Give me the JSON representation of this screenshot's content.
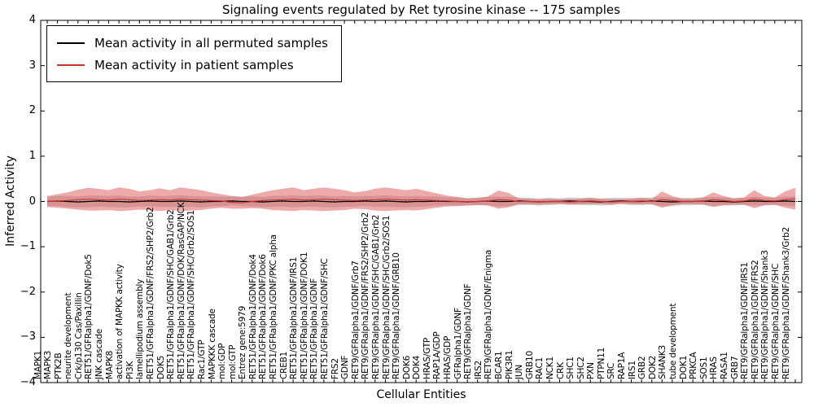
{
  "title": "Signaling events regulated by Ret tyrosine kinase -- 175 samples",
  "legend": {
    "items": [
      {
        "label": "Mean activity in all permuted samples",
        "color": "#000000"
      },
      {
        "label": "Mean activity in patient samples",
        "color": "#cc3333"
      }
    ]
  },
  "axes": {
    "ylabel": "Inferred Activity",
    "xlabel": "Cellular Entities",
    "yticks": [
      {
        "label": "4",
        "value": 4
      },
      {
        "label": "3",
        "value": 3
      },
      {
        "label": "2",
        "value": 2
      },
      {
        "label": "1",
        "value": 1
      },
      {
        "label": "0",
        "value": 0
      },
      {
        "label": "−1",
        "value": -1
      },
      {
        "label": "−2",
        "value": -2
      },
      {
        "label": "−3",
        "value": -3
      },
      {
        "label": "−4",
        "value": -4
      }
    ]
  },
  "chart_data": {
    "type": "line",
    "title": "Signaling events regulated by Ret tyrosine kinase -- 175 samples",
    "xlabel": "Cellular Entities",
    "ylabel": "Inferred Activity",
    "ylim": [
      -4,
      4
    ],
    "grid": false,
    "legend_position": "upper left",
    "zero_line_dotted": true,
    "categories": [
      "MAPK1",
      "MAPK3",
      "PTK2B",
      "neurite development",
      "Crk/p130 Cas/Paxillin",
      "RET51/GFRalpha1/GDNF/Dok5",
      "JNK cascade",
      "MAPK8",
      "activation of MAPKK activity",
      "PI3K",
      "lamellipodium assembly",
      "RET51/GFRalpha1/GDNF/FRS2/SHP2/Grb2",
      "DOK5",
      "RET51/GFRalpha1/GDNF/SHC/GAB1/Grb2",
      "RET51/GFRalpha1/GDNF/DOK/RasGAP/NCK",
      "RET51/GFRalpha1/GDNF/SHC/Grb2/SOS1",
      "Rac1/GTP",
      "MAPKKK cascade",
      "mol:GDP",
      "mol:GTP",
      "Entrez gene:5979",
      "RET51/GFRalpha1/GDNF/Dok4",
      "RET51/GFRalpha1/GDNF/Dok6",
      "RET51/GFRalpha1/GDNF/PKC alpha",
      "CREB1",
      "RET51/GFRalpha1/GDNF/IRS1",
      "RET51/GFRalpha1/GDNF/DOK1",
      "RET51/GFRalpha1/GDNF",
      "RET51/GFRalpha1/GDNF/SHC",
      "FRS2",
      "GDNF",
      "RET9/GFRalpha1/GDNF/Grb7",
      "RET9/GFRalpha1/GDNF/FRS2/SHP2/Grb2",
      "RET9/GFRalpha1/GDNF/SHC/GAB1/Grb2",
      "RET9/GFRalpha1/GDNF/SHC/Grb2/SOS1",
      "RET9/GFRalpha1/GDNF/GRB10",
      "DOK6",
      "DOK4",
      "HRAS/GTP",
      "RAP1A/GDP",
      "HRAS/GDP",
      "GFRalpha1/GDNF",
      "RET9/GFRalpha1/GDNF",
      "IRS2",
      "RET9/GFRalpha1/GDNF/Enigma",
      "BCAR1",
      "PIK3R1",
      "JUN",
      "GRB10",
      "RAC1",
      "NCK1",
      "CRK",
      "SHC1",
      "SHC2",
      "PXN",
      "PTPN11",
      "SRC",
      "RAP1A",
      "IRS1",
      "GRB2",
      "DOK2",
      "SHANK3",
      "tube development",
      "DOK1",
      "PRKCA",
      "SOS1",
      "HRAS",
      "RASA1",
      "GRB7",
      "RET9/GFRalpha1/GDNF/IRS1",
      "RET9/GFRalpha1/GDNF/FRS2",
      "RET9/GFRalpha1/GDNF/Shank3",
      "RET9/GFRalpha1/GDNF/SHC",
      "RET9/GFRalpha1/GDNF/Shank3/Grb2"
    ],
    "series": [
      {
        "name": "Mean activity in all permuted samples",
        "color": "#000000",
        "band_color": "#9a9a9a",
        "band_opacity": 0.45,
        "values": [
          0,
          0.01,
          0,
          -0.01,
          0,
          0.01,
          0,
          0,
          -0.01,
          0,
          0.01,
          0,
          0,
          0.01,
          0,
          -0.01,
          0,
          0,
          0.01,
          0,
          0,
          -0.01,
          0,
          0.01,
          0,
          0,
          0.01,
          0,
          -0.01,
          0,
          0,
          0.01,
          0,
          0.01,
          0,
          -0.01,
          0,
          0,
          0.01,
          0,
          0,
          -0.01,
          0,
          0.01,
          0,
          0,
          0.01,
          0,
          -0.01,
          0,
          0,
          0.01,
          0,
          0,
          -0.01,
          0,
          0.01,
          0,
          0,
          0.01,
          0,
          -0.01,
          0,
          0,
          0.01,
          0,
          0,
          -0.01,
          0,
          0.01,
          0,
          0,
          0.01,
          0
        ],
        "band_halfwidth": [
          0.1,
          0.11,
          0.12,
          0.12,
          0.13,
          0.12,
          0.12,
          0.13,
          0.12,
          0.11,
          0.12,
          0.12,
          0.12,
          0.13,
          0.12,
          0.12,
          0.11,
          0.1,
          0.1,
          0.1,
          0.11,
          0.11,
          0.12,
          0.12,
          0.13,
          0.12,
          0.12,
          0.13,
          0.12,
          0.12,
          0.11,
          0.11,
          0.12,
          0.13,
          0.12,
          0.12,
          0.12,
          0.11,
          0.1,
          0.09,
          0.09,
          0.08,
          0.08,
          0.09,
          0.11,
          0.1,
          0.08,
          0.08,
          0.08,
          0.08,
          0.07,
          0.08,
          0.08,
          0.08,
          0.08,
          0.08,
          0.07,
          0.08,
          0.08,
          0.08,
          0.1,
          0.09,
          0.08,
          0.08,
          0.08,
          0.1,
          0.09,
          0.08,
          0.08,
          0.1,
          0.09,
          0.08,
          0.1,
          0.11
        ]
      },
      {
        "name": "Mean activity in patient samples",
        "color": "#cc3333",
        "band_color": "#dd5555",
        "band_opacity": 0.5,
        "values": [
          0,
          0.01,
          0.02,
          0.04,
          0.05,
          0.04,
          0.03,
          0.05,
          0.04,
          0.02,
          0.03,
          0.04,
          0.03,
          0.05,
          0.04,
          0.03,
          0.02,
          0.01,
          -0.02,
          -0.03,
          0,
          0.02,
          0.03,
          0.04,
          0.05,
          0.03,
          0.04,
          0.05,
          0.04,
          0.03,
          0.02,
          0.03,
          0.04,
          0.05,
          0.04,
          0.03,
          0.04,
          0.03,
          0.02,
          0.01,
          0,
          -0.01,
          0,
          0.01,
          0.04,
          0.03,
          0,
          0,
          -0.01,
          0,
          0,
          -0.01,
          0,
          0.01,
          0,
          -0.01,
          0,
          0,
          0.01,
          0,
          0.04,
          0.02,
          0,
          0,
          0.01,
          0.04,
          0.02,
          0,
          0.01,
          0.05,
          0.02,
          0.01,
          0.04,
          0.06
        ],
        "band_halfwidth": [
          0.12,
          0.15,
          0.18,
          0.22,
          0.25,
          0.24,
          0.22,
          0.26,
          0.24,
          0.2,
          0.22,
          0.25,
          0.22,
          0.26,
          0.24,
          0.22,
          0.18,
          0.15,
          0.14,
          0.13,
          0.15,
          0.18,
          0.22,
          0.24,
          0.26,
          0.22,
          0.24,
          0.26,
          0.24,
          0.22,
          0.18,
          0.2,
          0.24,
          0.26,
          0.24,
          0.22,
          0.24,
          0.2,
          0.16,
          0.12,
          0.1,
          0.08,
          0.08,
          0.1,
          0.2,
          0.16,
          0.07,
          0.06,
          0.06,
          0.06,
          0.05,
          0.06,
          0.06,
          0.07,
          0.06,
          0.06,
          0.05,
          0.06,
          0.07,
          0.06,
          0.18,
          0.1,
          0.06,
          0.06,
          0.08,
          0.16,
          0.1,
          0.07,
          0.08,
          0.2,
          0.1,
          0.08,
          0.18,
          0.24
        ]
      }
    ]
  }
}
